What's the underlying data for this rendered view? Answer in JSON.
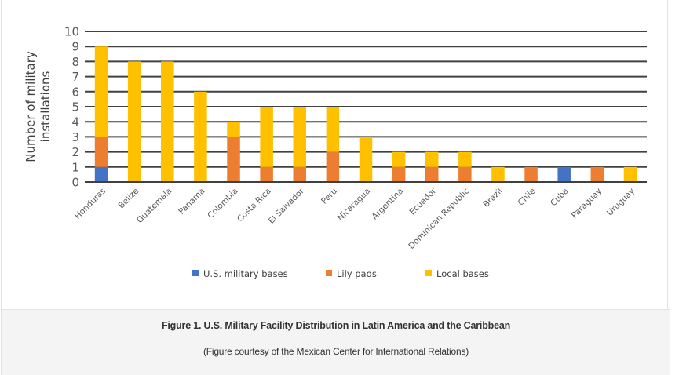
{
  "chart_data": {
    "type": "bar",
    "stacked": true,
    "title": "",
    "xlabel": "",
    "ylabel": [
      "Number of military",
      "installations"
    ],
    "ylim": [
      0,
      10
    ],
    "yticks": [
      "0",
      "1",
      "2",
      "3",
      "4",
      "5",
      "6",
      "7",
      "8",
      "9",
      "10"
    ],
    "grid": true,
    "legend_position": "bottom",
    "categories": [
      "Honduras",
      "Belize",
      "Guatemala",
      "Panama",
      "Colombia",
      "Costa Rica",
      "El Salvador",
      "Peru",
      "Nicaragua",
      "Argentina",
      "Ecuador",
      "Dominican Republic",
      "Brazil",
      "Chile",
      "Cuba",
      "Paraguay",
      "Uruguay"
    ],
    "series": [
      {
        "name": "U.S. military bases",
        "color": "#4472C4",
        "values": [
          1,
          0,
          0,
          0,
          0,
          0,
          0,
          0,
          0,
          0,
          0,
          0,
          0,
          0,
          1,
          0,
          0
        ]
      },
      {
        "name": "Lily pads",
        "color": "#ED7D31",
        "values": [
          2,
          0,
          0,
          0,
          3,
          1,
          1,
          2,
          0,
          1,
          1,
          1,
          0,
          1,
          0,
          1,
          0
        ]
      },
      {
        "name": "Local bases",
        "color": "#FFC000",
        "values": [
          6,
          8,
          8,
          6,
          1,
          4,
          4,
          3,
          3,
          1,
          1,
          1,
          1,
          0,
          0,
          0,
          1
        ]
      }
    ]
  },
  "caption": {
    "title": "Figure 1. U.S. Military Facility Distribution in Latin America and the Caribbean",
    "credit": "(Figure courtesy of the Mexican Center for International Relations)"
  },
  "colors": {
    "gridline": "#404040",
    "caption_background": "#f4f4f4"
  }
}
